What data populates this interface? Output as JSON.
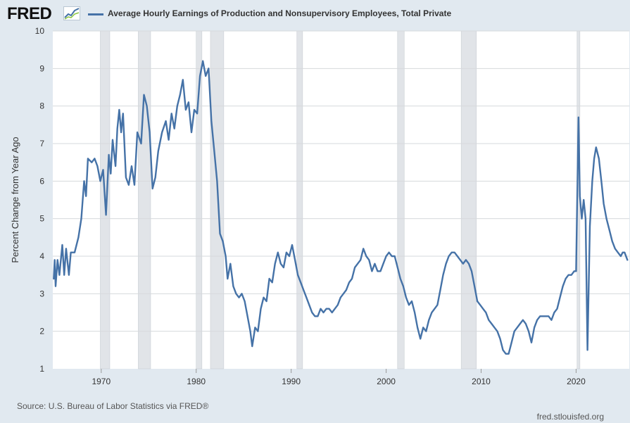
{
  "header": {
    "logo_text": "FRED",
    "logo_icon": "trend-line-icon",
    "series_title": "Average Hourly Earnings of Production and Nonsupervisory Employees, Total Private"
  },
  "footer": {
    "source": "U.S. Bureau of Labor Statistics via FRED®",
    "url": "fred.stlouisfed.org"
  },
  "colors": {
    "series": "#4572a7",
    "recession": "#e1e4e8",
    "grid": "#d6d9dc"
  },
  "chart_data": {
    "type": "line",
    "title": "",
    "ylabel": "Percent Change from Year Ago",
    "xlabel": "",
    "xlim": [
      1964.9,
      2025.6
    ],
    "ylim": [
      1,
      10
    ],
    "x_ticks": [
      "1970",
      "1980",
      "1990",
      "2000",
      "2010",
      "2020"
    ],
    "y_ticks": [
      "1",
      "2",
      "3",
      "4",
      "5",
      "6",
      "7",
      "8",
      "9",
      "10"
    ],
    "grid": "horizontal",
    "recessions": [
      [
        1969.9,
        1970.9
      ],
      [
        1973.9,
        1975.2
      ],
      [
        1980.0,
        1980.6
      ],
      [
        1981.5,
        1982.9
      ],
      [
        1990.6,
        1991.2
      ],
      [
        2001.2,
        2001.9
      ],
      [
        2007.9,
        2009.5
      ],
      [
        2020.1,
        2020.4
      ]
    ],
    "series": [
      {
        "name": "Average Hourly Earnings of Production and Nonsupervisory Employees, Total Private",
        "points": [
          [
            1965.0,
            3.4
          ],
          [
            1965.1,
            3.9
          ],
          [
            1965.2,
            3.2
          ],
          [
            1965.4,
            3.9
          ],
          [
            1965.6,
            3.5
          ],
          [
            1965.9,
            4.3
          ],
          [
            1966.1,
            3.5
          ],
          [
            1966.3,
            4.2
          ],
          [
            1966.6,
            3.5
          ],
          [
            1966.8,
            4.1
          ],
          [
            1967.2,
            4.1
          ],
          [
            1967.6,
            4.5
          ],
          [
            1967.9,
            5.0
          ],
          [
            1968.2,
            6.0
          ],
          [
            1968.4,
            5.6
          ],
          [
            1968.6,
            6.6
          ],
          [
            1969.0,
            6.5
          ],
          [
            1969.3,
            6.6
          ],
          [
            1969.6,
            6.4
          ],
          [
            1969.9,
            6.0
          ],
          [
            1970.2,
            6.3
          ],
          [
            1970.5,
            5.1
          ],
          [
            1970.8,
            6.7
          ],
          [
            1971.0,
            6.2
          ],
          [
            1971.2,
            7.1
          ],
          [
            1971.5,
            6.4
          ],
          [
            1971.7,
            7.4
          ],
          [
            1971.9,
            7.9
          ],
          [
            1972.1,
            7.3
          ],
          [
            1972.3,
            7.8
          ],
          [
            1972.6,
            6.1
          ],
          [
            1972.9,
            5.9
          ],
          [
            1973.2,
            6.4
          ],
          [
            1973.5,
            5.9
          ],
          [
            1973.8,
            7.3
          ],
          [
            1974.2,
            7.0
          ],
          [
            1974.5,
            8.3
          ],
          [
            1974.8,
            8.0
          ],
          [
            1975.1,
            7.3
          ],
          [
            1975.4,
            5.8
          ],
          [
            1975.7,
            6.1
          ],
          [
            1976.0,
            6.8
          ],
          [
            1976.4,
            7.3
          ],
          [
            1976.8,
            7.6
          ],
          [
            1977.1,
            7.1
          ],
          [
            1977.4,
            7.8
          ],
          [
            1977.7,
            7.4
          ],
          [
            1978.0,
            8.0
          ],
          [
            1978.3,
            8.3
          ],
          [
            1978.6,
            8.7
          ],
          [
            1978.9,
            7.9
          ],
          [
            1979.2,
            8.1
          ],
          [
            1979.5,
            7.3
          ],
          [
            1979.8,
            7.9
          ],
          [
            1980.1,
            7.8
          ],
          [
            1980.4,
            8.8
          ],
          [
            1980.7,
            9.2
          ],
          [
            1981.0,
            8.8
          ],
          [
            1981.3,
            9.0
          ],
          [
            1981.6,
            7.6
          ],
          [
            1981.9,
            6.8
          ],
          [
            1982.2,
            6.0
          ],
          [
            1982.5,
            4.6
          ],
          [
            1982.8,
            4.4
          ],
          [
            1983.1,
            4.0
          ],
          [
            1983.3,
            3.4
          ],
          [
            1983.6,
            3.8
          ],
          [
            1983.9,
            3.2
          ],
          [
            1984.2,
            3.0
          ],
          [
            1984.5,
            2.9
          ],
          [
            1984.8,
            3.0
          ],
          [
            1985.1,
            2.8
          ],
          [
            1985.4,
            2.4
          ],
          [
            1985.7,
            2.0
          ],
          [
            1985.9,
            1.6
          ],
          [
            1986.2,
            2.1
          ],
          [
            1986.5,
            2.0
          ],
          [
            1986.8,
            2.6
          ],
          [
            1987.1,
            2.9
          ],
          [
            1987.4,
            2.8
          ],
          [
            1987.7,
            3.4
          ],
          [
            1988.0,
            3.3
          ],
          [
            1988.3,
            3.8
          ],
          [
            1988.6,
            4.1
          ],
          [
            1988.9,
            3.8
          ],
          [
            1989.2,
            3.7
          ],
          [
            1989.5,
            4.1
          ],
          [
            1989.8,
            4.0
          ],
          [
            1990.1,
            4.3
          ],
          [
            1990.4,
            3.9
          ],
          [
            1990.7,
            3.5
          ],
          [
            1991.0,
            3.3
          ],
          [
            1991.3,
            3.1
          ],
          [
            1991.6,
            2.9
          ],
          [
            1991.9,
            2.7
          ],
          [
            1992.2,
            2.5
          ],
          [
            1992.5,
            2.4
          ],
          [
            1992.8,
            2.4
          ],
          [
            1993.1,
            2.6
          ],
          [
            1993.4,
            2.5
          ],
          [
            1993.7,
            2.6
          ],
          [
            1994.0,
            2.6
          ],
          [
            1994.3,
            2.5
          ],
          [
            1994.6,
            2.6
          ],
          [
            1994.9,
            2.7
          ],
          [
            1995.2,
            2.9
          ],
          [
            1995.5,
            3.0
          ],
          [
            1995.8,
            3.1
          ],
          [
            1996.1,
            3.3
          ],
          [
            1996.4,
            3.4
          ],
          [
            1996.7,
            3.7
          ],
          [
            1997.0,
            3.8
          ],
          [
            1997.3,
            3.9
          ],
          [
            1997.6,
            4.2
          ],
          [
            1997.9,
            4.0
          ],
          [
            1998.2,
            3.9
          ],
          [
            1998.5,
            3.6
          ],
          [
            1998.8,
            3.8
          ],
          [
            1999.1,
            3.6
          ],
          [
            1999.4,
            3.6
          ],
          [
            1999.7,
            3.8
          ],
          [
            2000.0,
            4.0
          ],
          [
            2000.3,
            4.1
          ],
          [
            2000.6,
            4.0
          ],
          [
            2000.9,
            4.0
          ],
          [
            2001.2,
            3.7
          ],
          [
            2001.5,
            3.4
          ],
          [
            2001.8,
            3.2
          ],
          [
            2002.1,
            2.9
          ],
          [
            2002.4,
            2.7
          ],
          [
            2002.7,
            2.8
          ],
          [
            2003.0,
            2.5
          ],
          [
            2003.3,
            2.1
          ],
          [
            2003.6,
            1.8
          ],
          [
            2003.9,
            2.1
          ],
          [
            2004.2,
            2.0
          ],
          [
            2004.5,
            2.3
          ],
          [
            2004.8,
            2.5
          ],
          [
            2005.1,
            2.6
          ],
          [
            2005.4,
            2.7
          ],
          [
            2005.7,
            3.1
          ],
          [
            2006.0,
            3.5
          ],
          [
            2006.3,
            3.8
          ],
          [
            2006.6,
            4.0
          ],
          [
            2006.9,
            4.1
          ],
          [
            2007.2,
            4.1
          ],
          [
            2007.5,
            4.0
          ],
          [
            2007.8,
            3.9
          ],
          [
            2008.1,
            3.8
          ],
          [
            2008.4,
            3.9
          ],
          [
            2008.7,
            3.8
          ],
          [
            2009.0,
            3.6
          ],
          [
            2009.3,
            3.2
          ],
          [
            2009.6,
            2.8
          ],
          [
            2009.9,
            2.7
          ],
          [
            2010.2,
            2.6
          ],
          [
            2010.5,
            2.5
          ],
          [
            2010.8,
            2.3
          ],
          [
            2011.1,
            2.2
          ],
          [
            2011.4,
            2.1
          ],
          [
            2011.7,
            2.0
          ],
          [
            2012.0,
            1.8
          ],
          [
            2012.3,
            1.5
          ],
          [
            2012.6,
            1.4
          ],
          [
            2012.9,
            1.4
          ],
          [
            2013.2,
            1.7
          ],
          [
            2013.5,
            2.0
          ],
          [
            2013.8,
            2.1
          ],
          [
            2014.1,
            2.2
          ],
          [
            2014.4,
            2.3
          ],
          [
            2014.7,
            2.2
          ],
          [
            2015.0,
            2.0
          ],
          [
            2015.3,
            1.7
          ],
          [
            2015.6,
            2.1
          ],
          [
            2015.9,
            2.3
          ],
          [
            2016.2,
            2.4
          ],
          [
            2016.5,
            2.4
          ],
          [
            2016.8,
            2.4
          ],
          [
            2017.1,
            2.4
          ],
          [
            2017.4,
            2.3
          ],
          [
            2017.7,
            2.5
          ],
          [
            2018.0,
            2.6
          ],
          [
            2018.3,
            2.9
          ],
          [
            2018.6,
            3.2
          ],
          [
            2018.9,
            3.4
          ],
          [
            2019.2,
            3.5
          ],
          [
            2019.5,
            3.5
          ],
          [
            2019.8,
            3.6
          ],
          [
            2020.0,
            3.6
          ],
          [
            2020.25,
            7.7
          ],
          [
            2020.4,
            5.6
          ],
          [
            2020.6,
            5.0
          ],
          [
            2020.8,
            5.5
          ],
          [
            2021.0,
            5.0
          ],
          [
            2021.2,
            1.5
          ],
          [
            2021.45,
            4.8
          ],
          [
            2021.7,
            6.0
          ],
          [
            2021.9,
            6.6
          ],
          [
            2022.1,
            6.9
          ],
          [
            2022.4,
            6.6
          ],
          [
            2022.7,
            5.9
          ],
          [
            2022.9,
            5.4
          ],
          [
            2023.2,
            5.0
          ],
          [
            2023.5,
            4.7
          ],
          [
            2023.8,
            4.4
          ],
          [
            2024.1,
            4.2
          ],
          [
            2024.4,
            4.1
          ],
          [
            2024.7,
            4.0
          ],
          [
            2024.9,
            4.1
          ],
          [
            2025.1,
            4.1
          ],
          [
            2025.4,
            3.9
          ]
        ]
      }
    ]
  }
}
